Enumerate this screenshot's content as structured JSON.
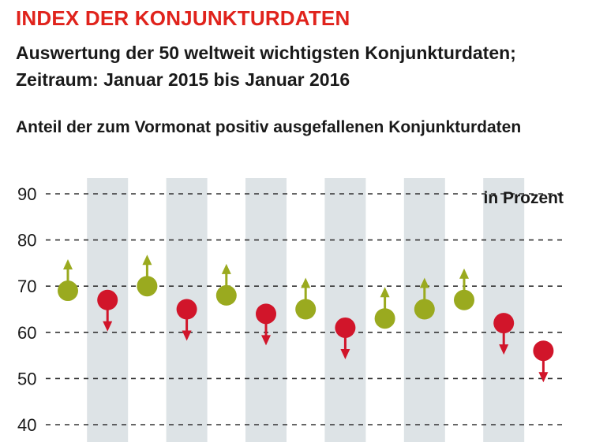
{
  "header": {
    "title": "INDEX DER KONJUNKTURDATEN",
    "subtitle": "Auswertung der 50 weltweit wichtigsten Konjunkturdaten;\nZeitraum: Januar 2015 bis Januar 2016",
    "chart_label": "Anteil der zum Vormonat positiv ausgefallenen Konjunkturdaten"
  },
  "colors": {
    "title": "#e0231c",
    "up": "#9aaa1f",
    "down": "#d1152a",
    "band": "#dde3e6",
    "grid": "#333333"
  },
  "chart_data": {
    "type": "scatter",
    "unit_label": "in Prozent",
    "ylim": [
      40,
      90
    ],
    "yticks": [
      40,
      50,
      60,
      70,
      80,
      90
    ],
    "grid": true,
    "grid_style": "dashed",
    "values": [
      69,
      67,
      70,
      65,
      68,
      64,
      65,
      61,
      63,
      65,
      67,
      62,
      56
    ],
    "directions": [
      "up",
      "down",
      "up",
      "down",
      "up",
      "down",
      "up",
      "down",
      "up",
      "up",
      "up",
      "down",
      "down"
    ]
  }
}
